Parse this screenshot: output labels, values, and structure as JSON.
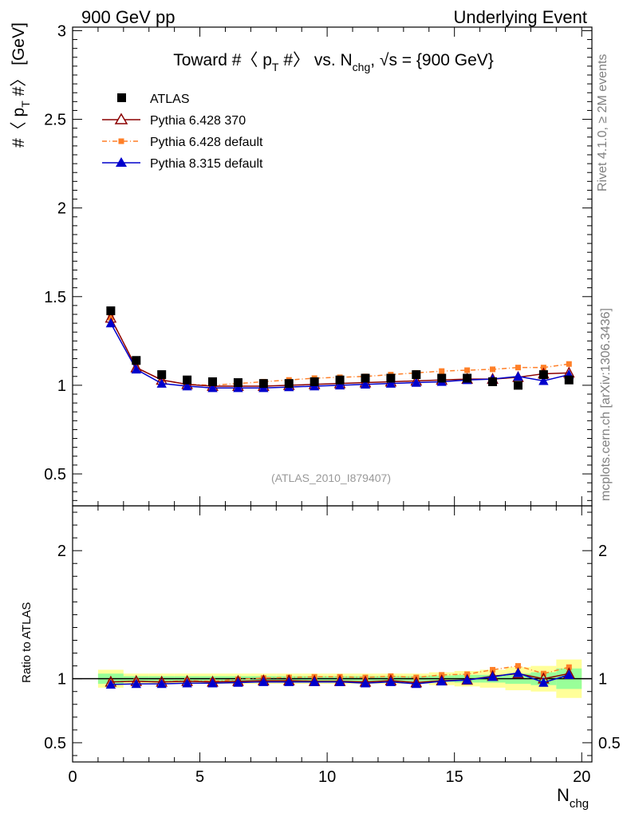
{
  "header": {
    "left": "900 GeV pp",
    "right": "Underlying Event"
  },
  "side_labels": {
    "rivet": "Rivet 4.1.0, ≥ 2M events",
    "source": "mcplots.cern.ch [arXiv:1306.3436]"
  },
  "chart_data": [
    {
      "type": "scatter",
      "title": "Toward #〈 p_T #〉 vs. N_chg, √s = {900 GeV}",
      "title_parts": {
        "a": "Toward #〈 p",
        "a_sub": "T",
        "b": " #〉 vs. N",
        "b_sub": "chg",
        "c": ", √s = {900 GeV}"
      },
      "xlabel": "N_chg",
      "xlabel_parts": {
        "main": "N",
        "sub": "chg"
      },
      "ylabel": "#〈 p_T #〉 [GeV]",
      "ylabel_parts": {
        "a": "#〈 p",
        "sub": "T",
        "b": " #〉 [GeV]"
      },
      "xlim": [
        0,
        20.4
      ],
      "ylim": [
        0.32,
        3.02
      ],
      "x_ticks": [
        0,
        5,
        10,
        15,
        20
      ],
      "x_tick_labels": [
        "0",
        "5",
        "10",
        "15",
        "20"
      ],
      "y_ticks": [
        0.5,
        1,
        1.5,
        2,
        2.5,
        3
      ],
      "y_tick_labels": [
        "0.5",
        "1",
        "1.5",
        "2",
        "2.5",
        "3"
      ],
      "watermark": "(ATLAS_2010_I879407)",
      "legend_position": "top-left",
      "x": [
        1.5,
        2.5,
        3.5,
        4.5,
        5.5,
        6.5,
        7.5,
        8.5,
        9.5,
        10.5,
        11.5,
        12.5,
        13.5,
        14.5,
        15.5,
        16.5,
        17.5,
        18.5,
        19.5
      ],
      "series": [
        {
          "name": "ATLAS",
          "color": "#000000",
          "marker": "square",
          "line": "none",
          "values": [
            1.42,
            1.14,
            1.06,
            1.03,
            1.02,
            1.015,
            1.01,
            1.01,
            1.02,
            1.03,
            1.04,
            1.04,
            1.06,
            1.04,
            1.04,
            1.02,
            1.0,
            1.06,
            1.03
          ],
          "errors": [
            0.02,
            0.01,
            0.01,
            0.01,
            0.01,
            0.01,
            0.01,
            0.01,
            0.01,
            0.01,
            0.01,
            0.01,
            0.01,
            0.01,
            0.01,
            0.01,
            0.01,
            0.01,
            0.02
          ]
        },
        {
          "name": "Pythia 6.428 370",
          "color": "#8b0000",
          "marker": "triangle-open",
          "line": "solid",
          "values": [
            1.38,
            1.1,
            1.03,
            1.005,
            0.995,
            0.995,
            0.995,
            1.0,
            1.005,
            1.01,
            1.015,
            1.02,
            1.025,
            1.03,
            1.035,
            1.035,
            1.045,
            1.065,
            1.07
          ]
        },
        {
          "name": "Pythia 6.428 default",
          "color": "#ff7f27",
          "marker": "square-small",
          "line": "dashdot",
          "values": [
            1.38,
            1.1,
            1.03,
            1.005,
            1.0,
            1.01,
            1.02,
            1.03,
            1.04,
            1.045,
            1.05,
            1.06,
            1.07,
            1.08,
            1.085,
            1.09,
            1.1,
            1.1,
            1.12
          ]
        },
        {
          "name": "Pythia 8.315 default",
          "color": "#0000cc",
          "marker": "triangle",
          "line": "solid",
          "values": [
            1.35,
            1.09,
            1.01,
            0.995,
            0.985,
            0.985,
            0.985,
            0.99,
            0.995,
            1.0,
            1.005,
            1.01,
            1.015,
            1.02,
            1.03,
            1.035,
            1.05,
            1.025,
            1.06
          ]
        }
      ]
    },
    {
      "type": "scatter",
      "title": "Ratio to ATLAS",
      "ylabel": "Ratio to ATLAS",
      "xlim": [
        0,
        20.4
      ],
      "ylim": [
        0.35,
        2.35
      ],
      "y_ticks": [
        0.5,
        1,
        2
      ],
      "y_tick_labels": [
        "0.5",
        "1",
        "2"
      ],
      "reference_line": 1,
      "band_edges": [
        1.0,
        2.0,
        3.0,
        4.0,
        5.0,
        6.0,
        7.0,
        8.0,
        9.0,
        10.0,
        11.0,
        12.0,
        13.0,
        14.0,
        15.0,
        16.0,
        17.0,
        18.0,
        19.0,
        20.0
      ],
      "band_green_halfwidth": [
        0.04,
        0.02,
        0.02,
        0.02,
        0.02,
        0.02,
        0.02,
        0.02,
        0.02,
        0.02,
        0.02,
        0.02,
        0.02,
        0.025,
        0.03,
        0.03,
        0.04,
        0.05,
        0.08
      ],
      "band_yellow_halfwidth": [
        0.07,
        0.04,
        0.04,
        0.04,
        0.04,
        0.04,
        0.04,
        0.04,
        0.04,
        0.04,
        0.04,
        0.04,
        0.04,
        0.05,
        0.06,
        0.07,
        0.09,
        0.1,
        0.15
      ],
      "x": [
        1.5,
        2.5,
        3.5,
        4.5,
        5.5,
        6.5,
        7.5,
        8.5,
        9.5,
        10.5,
        11.5,
        12.5,
        13.5,
        14.5,
        15.5,
        16.5,
        17.5,
        18.5,
        19.5
      ],
      "series": [
        {
          "name": "Pythia 6.428 370",
          "color": "#8b0000",
          "marker": "triangle-open",
          "line": "solid",
          "values": [
            0.975,
            0.98,
            0.975,
            0.98,
            0.975,
            0.98,
            0.985,
            0.985,
            0.98,
            0.98,
            0.975,
            0.985,
            0.97,
            0.985,
            0.99,
            1.02,
            1.04,
            1.0,
            1.04
          ]
        },
        {
          "name": "Pythia 6.428 default",
          "color": "#ff7f27",
          "marker": "square-small",
          "line": "dashdot",
          "values": [
            0.975,
            0.98,
            0.975,
            0.985,
            0.98,
            0.995,
            1.005,
            1.01,
            1.015,
            1.015,
            1.01,
            1.02,
            1.01,
            1.03,
            1.035,
            1.07,
            1.1,
            1.04,
            1.09
          ]
        },
        {
          "name": "Pythia 8.315 default",
          "color": "#0000cc",
          "marker": "triangle",
          "line": "solid",
          "values": [
            0.955,
            0.96,
            0.96,
            0.965,
            0.965,
            0.97,
            0.975,
            0.975,
            0.975,
            0.975,
            0.965,
            0.975,
            0.96,
            0.98,
            0.99,
            1.015,
            1.045,
            0.97,
            1.03
          ]
        }
      ]
    }
  ]
}
